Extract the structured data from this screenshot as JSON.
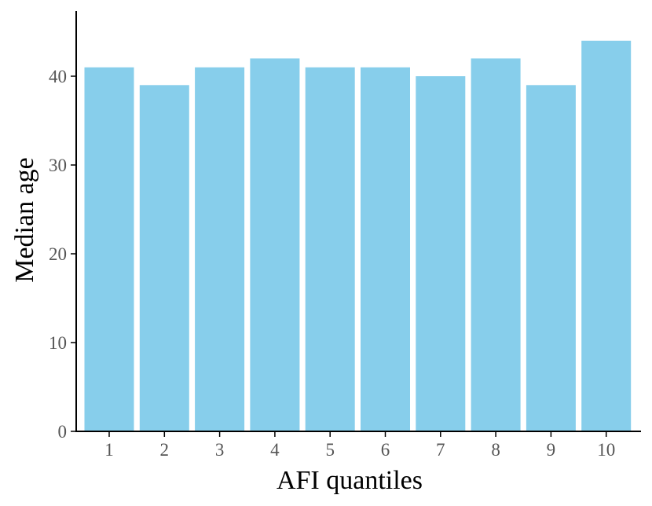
{
  "chart_data": {
    "type": "bar",
    "categories": [
      "1",
      "2",
      "3",
      "4",
      "5",
      "6",
      "7",
      "8",
      "9",
      "10"
    ],
    "values": [
      41,
      39,
      41,
      42,
      41,
      41,
      40,
      42,
      39,
      44
    ],
    "title": "",
    "xlabel": "AFI quantiles",
    "ylabel": "Median age",
    "ylim": [
      0,
      46
    ],
    "yticks": [
      0,
      10,
      20,
      30,
      40
    ],
    "grid": false,
    "bar_color": "#87CEEB"
  }
}
